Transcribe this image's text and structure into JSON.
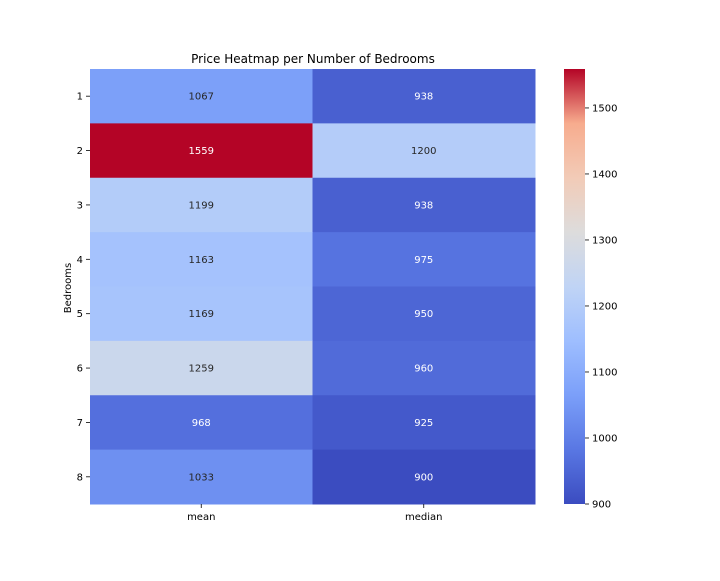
{
  "chart_data": {
    "type": "heatmap",
    "title": "Price Heatmap per Number of Bedrooms",
    "xlabel": "",
    "ylabel": "Bedrooms",
    "x_categories": [
      "mean",
      "median"
    ],
    "y_categories": [
      "1",
      "2",
      "3",
      "4",
      "5",
      "6",
      "7",
      "8"
    ],
    "values": [
      [
        1067,
        938
      ],
      [
        1559,
        1200
      ],
      [
        1199,
        938
      ],
      [
        1163,
        975
      ],
      [
        1169,
        950
      ],
      [
        1259,
        960
      ],
      [
        968,
        925
      ],
      [
        1033,
        900
      ]
    ],
    "colormap": "coolwarm",
    "color_range": [
      900,
      1559
    ],
    "colorbar_ticks": [
      900,
      1000,
      1100,
      1200,
      1300,
      1400,
      1500
    ],
    "value_format": "integer"
  }
}
